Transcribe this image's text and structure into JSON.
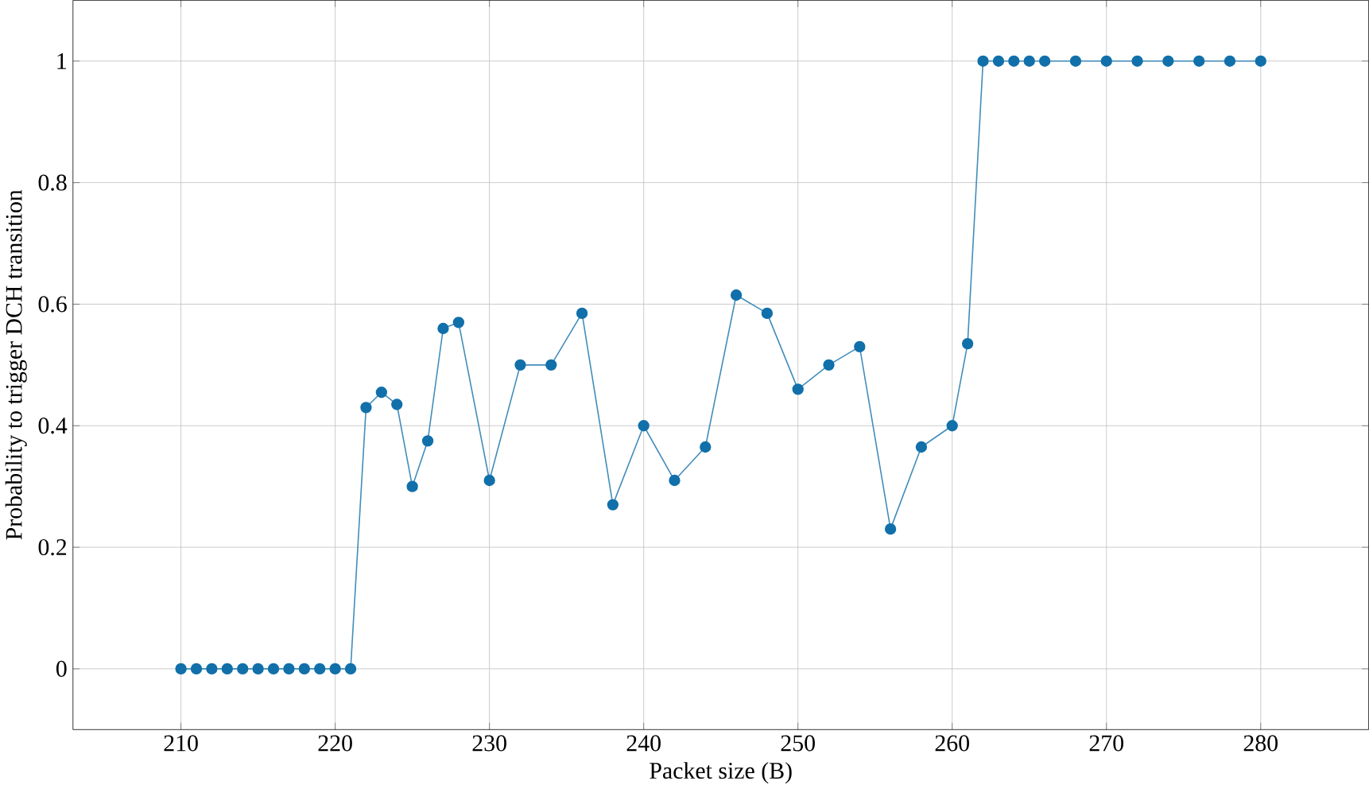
{
  "chart_data": {
    "type": "line",
    "xlabel": "Packet size (B)",
    "ylabel": "Probability to trigger DCH transition",
    "x": [
      210,
      211,
      212,
      213,
      214,
      215,
      216,
      217,
      218,
      219,
      220,
      221,
      222,
      223,
      224,
      225,
      226,
      227,
      228,
      230,
      232,
      234,
      236,
      238,
      240,
      242,
      244,
      246,
      248,
      250,
      252,
      254,
      256,
      258,
      260,
      261,
      262,
      263,
      264,
      265,
      266,
      268,
      270,
      272,
      274,
      276,
      278,
      280
    ],
    "values": [
      0,
      0,
      0,
      0,
      0,
      0,
      0,
      0,
      0,
      0,
      0,
      0,
      0.43,
      0.455,
      0.435,
      0.3,
      0.375,
      0.56,
      0.57,
      0.31,
      0.5,
      0.5,
      0.585,
      0.27,
      0.4,
      0.31,
      0.365,
      0.615,
      0.585,
      0.46,
      0.5,
      0.53,
      0.23,
      0.365,
      0.4,
      0.535,
      1,
      1,
      1,
      1,
      1,
      1,
      1,
      1,
      1,
      1,
      1,
      1
    ],
    "color": "#1170aa",
    "marker": "circle",
    "line_style": "solid",
    "grid": true,
    "xlim": [
      203,
      287
    ],
    "ylim": [
      -0.1,
      1.1
    ],
    "xticks": [
      210,
      220,
      230,
      240,
      250,
      260,
      270,
      280
    ],
    "yticks": [
      0,
      0.2,
      0.4,
      0.6,
      0.8,
      1
    ]
  }
}
